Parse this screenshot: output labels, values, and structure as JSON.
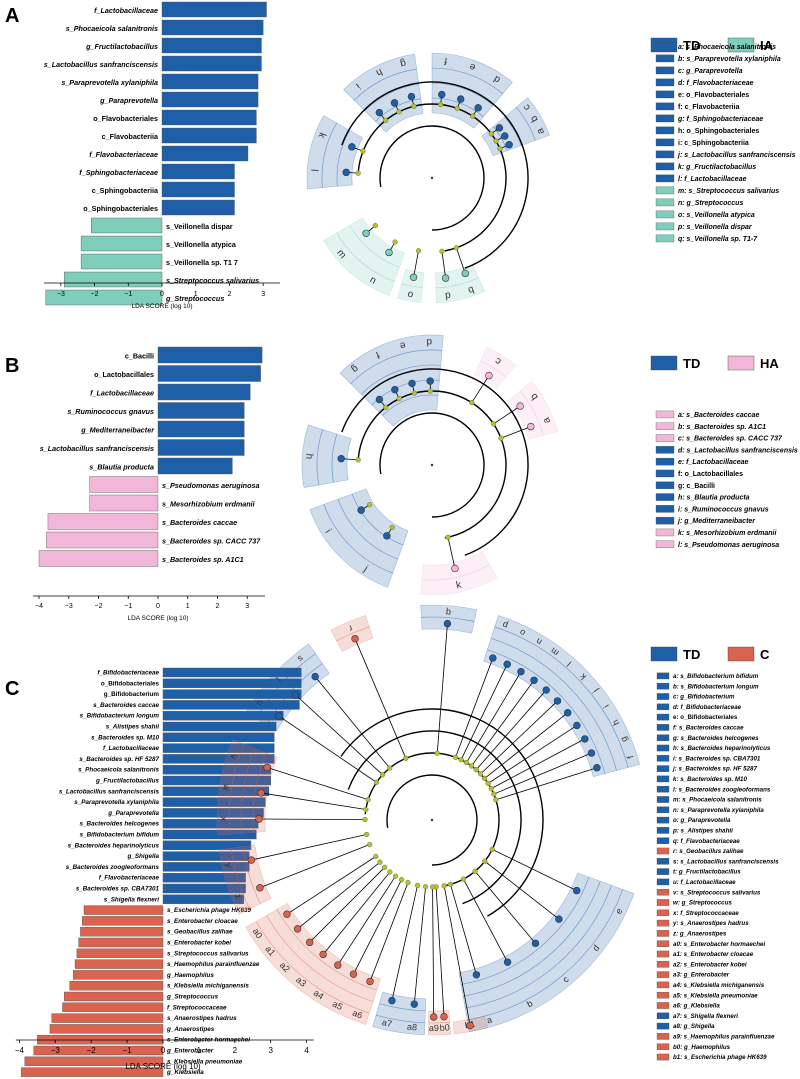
{
  "colors": {
    "TD": "#1f5fa8",
    "IA": "#7fcdbb",
    "HA": "#f2b6d8",
    "C": "#d9634e",
    "node": "#b7c22a",
    "axis": "#000000"
  },
  "chart_data": [
    {
      "panel": "A",
      "type": "bar",
      "orientation": "horizontal",
      "xlabel": "LDA SCORE (log 10)",
      "xlim": [
        -3.5,
        3.5
      ],
      "xticks": [
        -3,
        -2,
        -1,
        0,
        1,
        2,
        3
      ],
      "legend": [
        {
          "name": "TD",
          "color": "#1f5fa8"
        },
        {
          "name": "IA",
          "color": "#7fcdbb"
        }
      ],
      "bars": [
        {
          "label": "f_Lactobacillaceae",
          "value": 3.1,
          "group": "TD"
        },
        {
          "label": "s_Phocaeicola salanitronis",
          "value": 3.0,
          "group": "TD"
        },
        {
          "label": "g_Fructilactobacillus",
          "value": 2.95,
          "group": "TD"
        },
        {
          "label": "s_Lactobacillus sanfranciscensis",
          "value": 2.95,
          "group": "TD"
        },
        {
          "label": "s_Paraprevotella xylaniphila",
          "value": 2.85,
          "group": "TD"
        },
        {
          "label": "g_Paraprevotella",
          "value": 2.85,
          "group": "TD"
        },
        {
          "label": "o_Flavobacteriales",
          "value": 2.8,
          "group": "TD"
        },
        {
          "label": "c_Flavobacteriia",
          "value": 2.8,
          "group": "TD"
        },
        {
          "label": "f_Flavobacteriaceae",
          "value": 2.55,
          "group": "TD"
        },
        {
          "label": "f_Sphingobacteriaceae",
          "value": 2.15,
          "group": "TD"
        },
        {
          "label": "c_Sphingobacteriia",
          "value": 2.15,
          "group": "TD"
        },
        {
          "label": "o_Sphingobacteriales",
          "value": 2.15,
          "group": "TD"
        },
        {
          "label": "s_Veillonella dispar",
          "value": -2.1,
          "group": "IA"
        },
        {
          "label": "s_Veillonella atypica",
          "value": -2.4,
          "group": "IA"
        },
        {
          "label": "s_Veillonella sp. T1 7",
          "value": -2.4,
          "group": "IA"
        },
        {
          "label": "s_Streptococcus salivarius",
          "value": -2.9,
          "group": "IA"
        },
        {
          "label": "g_Streptococcus",
          "value": -3.45,
          "group": "IA"
        }
      ],
      "cladogram_legend": [
        {
          "text": "a: s_Phocaeicola salanitronis",
          "group": "TD"
        },
        {
          "text": "b: s_Paraprevotella xylaniphila",
          "group": "TD"
        },
        {
          "text": "c: g_Paraprevotella",
          "group": "TD"
        },
        {
          "text": "d: f_Flavobacteriaceae",
          "group": "TD"
        },
        {
          "text": "e: o_Flavobacteriales",
          "group": "TD"
        },
        {
          "text": "f: c_Flavobacteriia",
          "group": "TD"
        },
        {
          "text": "g: f_Sphingobacteriaceae",
          "group": "TD"
        },
        {
          "text": "h: o_Sphingobacteriales",
          "group": "TD"
        },
        {
          "text": "i: c_Sphingobacteriia",
          "group": "TD"
        },
        {
          "text": "j: s_Lactobacillus sanfranciscensis",
          "group": "TD"
        },
        {
          "text": "k: g_Fructilactobacillus",
          "group": "TD"
        },
        {
          "text": "l: f_Lactobacillaceae",
          "group": "TD"
        },
        {
          "text": "m: s_Streptococcus salivarius",
          "group": "IA"
        },
        {
          "text": "n: g_Streptococcus",
          "group": "IA"
        },
        {
          "text": "o: s_Veillonella atypica",
          "group": "IA"
        },
        {
          "text": "p: s_Veillonella dispar",
          "group": "IA"
        },
        {
          "text": "q: s_Veillonella sp. T1-7",
          "group": "IA"
        }
      ],
      "sectors": [
        {
          "letters": [
            "l",
            "k"
          ],
          "group": "TD"
        },
        {
          "letters": [
            "i",
            "h",
            "g"
          ],
          "group": "TD"
        },
        {
          "letters": [
            "f",
            "e",
            "d"
          ],
          "group": "TD"
        },
        {
          "letters": [
            "c",
            "b",
            "a"
          ],
          "group": "TD"
        },
        {
          "letters": [
            "n",
            "m"
          ],
          "group": "IA"
        },
        {
          "letters": [
            "o"
          ],
          "group": "IA"
        },
        {
          "letters": [
            "q",
            "p"
          ],
          "group": "IA"
        }
      ]
    },
    {
      "panel": "B",
      "type": "bar",
      "orientation": "horizontal",
      "xlabel": "LDA SCORE (log 10)",
      "xlim": [
        -4.2,
        3.6
      ],
      "xticks": [
        -4,
        -3,
        -2,
        -1,
        0,
        1,
        2,
        3
      ],
      "legend": [
        {
          "name": "TD",
          "color": "#1f5fa8"
        },
        {
          "name": "HA",
          "color": "#f2b6d8"
        }
      ],
      "bars": [
        {
          "label": "c_Bacilli",
          "value": 3.5,
          "group": "TD"
        },
        {
          "label": "o_Lactobacillales",
          "value": 3.45,
          "group": "TD"
        },
        {
          "label": "f_Lactobacillaceae",
          "value": 3.1,
          "group": "TD"
        },
        {
          "label": "s_Ruminococcus gnavus",
          "value": 2.9,
          "group": "TD"
        },
        {
          "label": "g_Mediterraneibacter",
          "value": 2.9,
          "group": "TD"
        },
        {
          "label": "s_Lactobacillus sanfranciscensis",
          "value": 2.9,
          "group": "TD"
        },
        {
          "label": "s_Blautia producta",
          "value": 2.5,
          "group": "TD"
        },
        {
          "label": "s_Pseudomonas aeruginosa",
          "value": -2.3,
          "group": "HA"
        },
        {
          "label": "s_Mesorhizobium erdmanii",
          "value": -2.3,
          "group": "HA"
        },
        {
          "label": "s_Bacteroides caccae",
          "value": -3.7,
          "group": "HA"
        },
        {
          "label": "s_Bacteroides sp. CACC 737",
          "value": -3.75,
          "group": "HA"
        },
        {
          "label": "s_Bacteroides sp. A1C1",
          "value": -4.0,
          "group": "HA"
        }
      ],
      "cladogram_legend": [
        {
          "text": "a: s_Bacteroides caccae",
          "group": "HA"
        },
        {
          "text": "b: s_Bacteroides sp. A1C1",
          "group": "HA"
        },
        {
          "text": "c: s_Bacteroides sp. CACC 737",
          "group": "HA"
        },
        {
          "text": "d: s_Lactobacillus sanfranciscensis",
          "group": "TD"
        },
        {
          "text": "e: f_Lactobacillaceae",
          "group": "TD"
        },
        {
          "text": "f: o_Lactobacillales",
          "group": "TD"
        },
        {
          "text": "g: c_Bacilli",
          "group": "TD"
        },
        {
          "text": "h: s_Blautia producta",
          "group": "TD"
        },
        {
          "text": "i: s_Ruminococcus gnavus",
          "group": "TD"
        },
        {
          "text": "j: g_Mediterraneibacter",
          "group": "TD"
        },
        {
          "text": "k: s_Mesorhizobium erdmanii",
          "group": "HA"
        },
        {
          "text": "l: s_Pseudomonas aeruginosa",
          "group": "HA"
        }
      ],
      "sectors": [
        {
          "letters": [
            "g",
            "f",
            "e",
            "d"
          ],
          "group": "TD"
        },
        {
          "letters": [
            "h"
          ],
          "group": "TD"
        },
        {
          "letters": [
            "j",
            "i"
          ],
          "group": "TD"
        },
        {
          "letters": [
            "k"
          ],
          "group": "HA"
        },
        {
          "letters": [
            "c"
          ],
          "group": "HA"
        },
        {
          "letters": [
            "b",
            "a"
          ],
          "group": "HA"
        }
      ]
    },
    {
      "panel": "C",
      "type": "bar",
      "orientation": "horizontal",
      "xlabel": "LDA SCORE (log 10)",
      "xlim": [
        -4.1,
        4.2
      ],
      "xticks": [
        -4,
        -3,
        -2,
        -1,
        0,
        1,
        2,
        3,
        4
      ],
      "legend": [
        {
          "name": "TD",
          "color": "#1f5fa8"
        },
        {
          "name": "C",
          "color": "#d9634e"
        }
      ],
      "bars": [
        {
          "label": "f_Bifidobacteriaceae",
          "value": 3.85,
          "group": "TD"
        },
        {
          "label": "o_Bifidobacteriales",
          "value": 3.85,
          "group": "TD"
        },
        {
          "label": "g_Bifidobacterium",
          "value": 3.85,
          "group": "TD"
        },
        {
          "label": "s_Bacteroides caccae",
          "value": 3.8,
          "group": "TD"
        },
        {
          "label": "s_Bifidobacterium longum",
          "value": 3.35,
          "group": "TD"
        },
        {
          "label": "s_Alistipes shahii",
          "value": 3.15,
          "group": "TD"
        },
        {
          "label": "s_Bacteroides sp. M10",
          "value": 3.1,
          "group": "TD"
        },
        {
          "label": "f_Lactobacillaceae",
          "value": 3.1,
          "group": "TD"
        },
        {
          "label": "s_Bacteroides sp. HF 5287",
          "value": 3.1,
          "group": "TD"
        },
        {
          "label": "s_Phocaeicola salanitronis",
          "value": 3.0,
          "group": "TD"
        },
        {
          "label": "g_Fructilactobacillus",
          "value": 3.0,
          "group": "TD"
        },
        {
          "label": "s_Lactobacillus sanfranciscensis",
          "value": 2.95,
          "group": "TD"
        },
        {
          "label": "s_Paraprevotella xylaniphila",
          "value": 2.85,
          "group": "TD"
        },
        {
          "label": "g_Paraprevotella",
          "value": 2.8,
          "group": "TD"
        },
        {
          "label": "s_Bacteroides helcogenes",
          "value": 2.65,
          "group": "TD"
        },
        {
          "label": "s_Bifidobacterium bifidum",
          "value": 2.6,
          "group": "TD"
        },
        {
          "label": "s_Bacteroides heparinolyticus",
          "value": 2.45,
          "group": "TD"
        },
        {
          "label": "g_Shigella",
          "value": 2.4,
          "group": "TD"
        },
        {
          "label": "s_Bacteroides zoogleoformans",
          "value": 2.4,
          "group": "TD"
        },
        {
          "label": "f_Flavobacteriaceae",
          "value": 2.3,
          "group": "TD"
        },
        {
          "label": "s_Bacteroides sp. CBA7301",
          "value": 2.3,
          "group": "TD"
        },
        {
          "label": "s_Shigella flexneri",
          "value": 2.25,
          "group": "TD"
        },
        {
          "label": "s_Escherichia phage HK639",
          "value": -2.2,
          "group": "C"
        },
        {
          "label": "s_Enterobacter cloacae",
          "value": -2.25,
          "group": "C"
        },
        {
          "label": "s_Geobacillus zalihae",
          "value": -2.3,
          "group": "C"
        },
        {
          "label": "s_Enterobacter kobei",
          "value": -2.35,
          "group": "C"
        },
        {
          "label": "s_Streptococcus salivarius",
          "value": -2.4,
          "group": "C"
        },
        {
          "label": "s_Haemophilus parainfluenzae",
          "value": -2.45,
          "group": "C"
        },
        {
          "label": "g_Haemophilus",
          "value": -2.5,
          "group": "C"
        },
        {
          "label": "s_Klebsiella michiganensis",
          "value": -2.6,
          "group": "C"
        },
        {
          "label": "g_Streptococcus",
          "value": -2.75,
          "group": "C"
        },
        {
          "label": "f_Streptococcaceae",
          "value": -2.8,
          "group": "C"
        },
        {
          "label": "s_Anaerostipes hadrus",
          "value": -3.1,
          "group": "C"
        },
        {
          "label": "g_Anaerostipes",
          "value": -3.15,
          "group": "C"
        },
        {
          "label": "s_Enterobacter hormaechei",
          "value": -3.5,
          "group": "C"
        },
        {
          "label": "g_Enterobacter",
          "value": -3.6,
          "group": "C"
        },
        {
          "label": "s_Klebsiella pneumoniae",
          "value": -3.85,
          "group": "C"
        },
        {
          "label": "g_Klebsiella",
          "value": -3.95,
          "group": "C"
        }
      ],
      "cladogram_legend": [
        {
          "text": "a: s_Bifidobacterium bifidum",
          "group": "TD"
        },
        {
          "text": "b: s_Bifidobacterium longum",
          "group": "TD"
        },
        {
          "text": "c: g_Bifidobacterium",
          "group": "TD"
        },
        {
          "text": "d: f_Bifidobacteriaceae",
          "group": "TD"
        },
        {
          "text": "e: o_Bifidobacteriales",
          "group": "TD"
        },
        {
          "text": "f: s_Bacteroides caccae",
          "group": "TD"
        },
        {
          "text": "g: s_Bacteroides helcogenes",
          "group": "TD"
        },
        {
          "text": "h: s_Bacteroides heparinolyticus",
          "group": "TD"
        },
        {
          "text": "i: s_Bacteroides sp. CBA7301",
          "group": "TD"
        },
        {
          "text": "j: s_Bacteroides sp. HF 5287",
          "group": "TD"
        },
        {
          "text": "k: s_Bacteroides sp. M10",
          "group": "TD"
        },
        {
          "text": "l: s_Bacteroides zoogleoformans",
          "group": "TD"
        },
        {
          "text": "m: s_Phocaeicola salanitronis",
          "group": "TD"
        },
        {
          "text": "n: s_Paraprevotella xylaniphila",
          "group": "TD"
        },
        {
          "text": "o: g_Paraprevotella",
          "group": "TD"
        },
        {
          "text": "p: s_Alistipes shahii",
          "group": "TD"
        },
        {
          "text": "q: f_Flavobacteriaceae",
          "group": "TD"
        },
        {
          "text": "r: s_Geobacillus zalihae",
          "group": "C"
        },
        {
          "text": "s: s_Lactobacillus sanfranciscensis",
          "group": "TD"
        },
        {
          "text": "t: g_Fructilactobacillus",
          "group": "TD"
        },
        {
          "text": "u: f_Lactobacillaceae",
          "group": "TD"
        },
        {
          "text": "v: s_Streptococcus salivarius",
          "group": "C"
        },
        {
          "text": "w: g_Streptococcus",
          "group": "C"
        },
        {
          "text": "x: f_Streptococcaceae",
          "group": "C"
        },
        {
          "text": "y: s_Anaerostipes hadrus",
          "group": "C"
        },
        {
          "text": "z: g_Anaerostipes",
          "group": "C"
        },
        {
          "text": "a0: s_Enterobacter hormaechei",
          "group": "C"
        },
        {
          "text": "a1: s_Enterobacter cloacae",
          "group": "C"
        },
        {
          "text": "a2: s_Enterobacter kobei",
          "group": "C"
        },
        {
          "text": "a3: g_Enterobacter",
          "group": "C"
        },
        {
          "text": "a4: s_Klebsiella michiganensis",
          "group": "C"
        },
        {
          "text": "a5: s_Klebsiella pneumoniae",
          "group": "C"
        },
        {
          "text": "a6: g_Klebsiella",
          "group": "C"
        },
        {
          "text": "a7: s_Shigella flexneri",
          "group": "TD"
        },
        {
          "text": "a8: g_Shigella",
          "group": "TD"
        },
        {
          "text": "a9: s_Haemophilus parainfluenzae",
          "group": "C"
        },
        {
          "text": "b0: g_Haemophilus",
          "group": "C"
        },
        {
          "text": "b1: s_Escherichia phage HK639",
          "group": "C"
        }
      ],
      "sectors": [
        {
          "letters": [
            "q"
          ],
          "group": "TD"
        },
        {
          "letters": [
            "p",
            "o",
            "n",
            "m",
            "l",
            "k",
            "j",
            "i",
            "h",
            "g",
            "f"
          ],
          "group": "TD"
        },
        {
          "letters": [
            "e",
            "d",
            "c",
            "b",
            "a"
          ],
          "group": "TD"
        },
        {
          "letters": [
            "a8",
            "a7"
          ],
          "group": "TD"
        },
        {
          "letters": [
            "b0",
            "a9"
          ],
          "group": "C"
        },
        {
          "letters": [
            "b1"
          ],
          "group": "C"
        },
        {
          "letters": [
            "a6",
            "a5",
            "a4",
            "a3",
            "a2",
            "a1",
            "a0"
          ],
          "group": "C"
        },
        {
          "letters": [
            "z",
            "y"
          ],
          "group": "C"
        },
        {
          "letters": [
            "x",
            "w",
            "v"
          ],
          "group": "C"
        },
        {
          "letters": [
            "u",
            "t",
            "s"
          ],
          "group": "TD"
        },
        {
          "letters": [
            "r"
          ],
          "group": "C"
        }
      ]
    }
  ]
}
